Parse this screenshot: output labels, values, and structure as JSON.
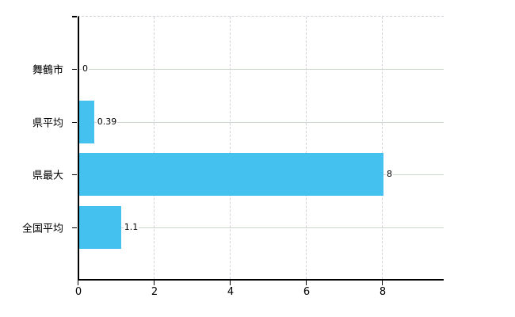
{
  "chart_data": {
    "type": "bar",
    "orientation": "horizontal",
    "title": "",
    "xlabel": "",
    "ylabel": "",
    "categories": [
      "舞鶴市",
      "県平均",
      "県最大",
      "全国平均"
    ],
    "values": [
      0,
      0.39,
      8,
      1.1
    ],
    "value_labels": [
      "0",
      "0.39",
      "8",
      "1.1"
    ],
    "x_ticks": [
      0,
      2,
      4,
      6,
      8
    ],
    "x_tick_labels": [
      "0",
      "2",
      "4",
      "6",
      "8"
    ],
    "xlim": [
      0,
      9.625
    ],
    "grid": true,
    "legend": false,
    "colors": {
      "bar": "#45C1F0",
      "axis": "#000000",
      "h_gridline": "#ccd5cc",
      "v_gridline": "#d6d0da",
      "background": "#ffffff",
      "text": "#000000"
    }
  }
}
